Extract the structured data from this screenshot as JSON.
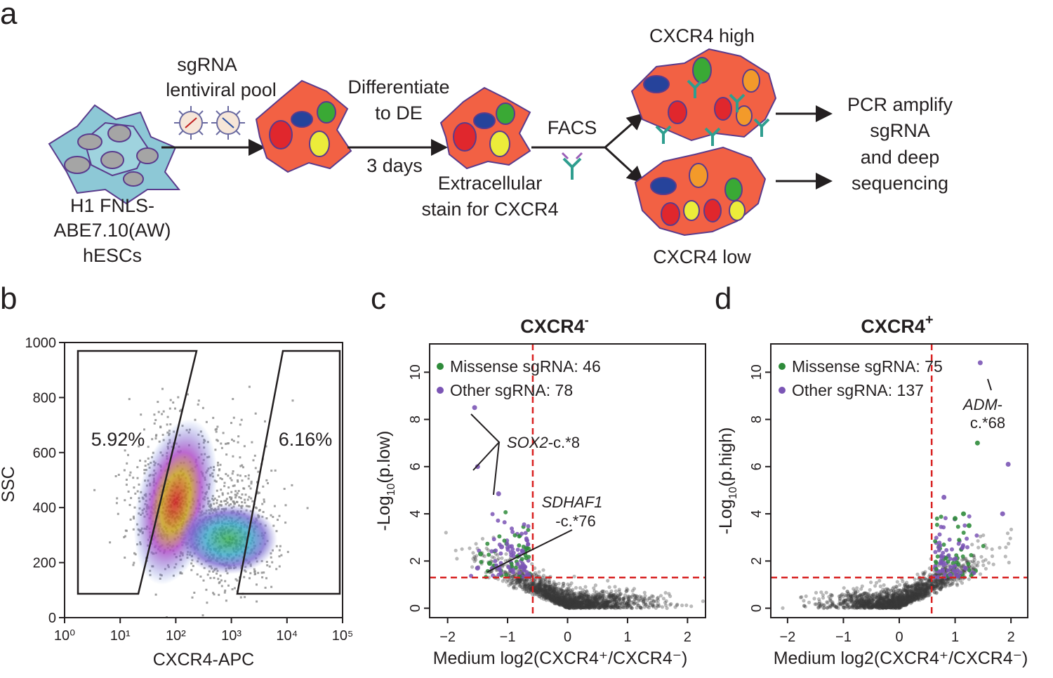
{
  "panel_labels": {
    "a": "a",
    "b": "b",
    "c": "c",
    "d": "d"
  },
  "panel_a": {
    "start_cells": [
      "H1 FNLS-",
      "ABE7.10(AW)",
      "hESCs"
    ],
    "lentiviral": [
      "sgRNA",
      "lentiviral pool"
    ],
    "differentiate": [
      "Differentiate",
      "to DE"
    ],
    "duration": "3 days",
    "stain": [
      "Extracellular",
      "stain for CXCR4"
    ],
    "facs": "FACS",
    "high": "CXCR4 high",
    "low": "CXCR4 low",
    "readout": [
      "PCR amplify",
      "sgRNA",
      "and deep",
      "sequencing"
    ],
    "colors": {
      "hesc": "#8dc8d6",
      "cell": "#f26144",
      "nucleus_red": "#e0272d",
      "nucleus_blue": "#26439b",
      "nucleus_green": "#3aa935",
      "nucleus_yellow": "#ecec3a",
      "nucleus_orange": "#f39a2a",
      "antibody": "#2f9e8f"
    }
  },
  "chart_data": [
    {
      "panel": "b",
      "type": "scatter",
      "subtype": "flow-cytometry density plot",
      "xlabel": "CXCR4-APC",
      "ylabel": "SSC",
      "x_scale": "log10",
      "xlim": [
        1,
        100000
      ],
      "xticks": [
        "10⁰",
        "10¹",
        "10²",
        "10³",
        "10⁴",
        "10⁵"
      ],
      "ylim": [
        0,
        1000
      ],
      "yticks": [
        "0",
        "200",
        "400",
        "600",
        "800",
        "1000"
      ],
      "gates": [
        {
          "label": "5.92%",
          "value": 5.92
        },
        {
          "label": "6.16%",
          "value": 6.16
        }
      ],
      "populations": [
        {
          "x_center": 80,
          "y_center": 380
        },
        {
          "x_center": 900,
          "y_center": 290
        }
      ]
    },
    {
      "panel": "c",
      "type": "scatter",
      "title": "CXCR4",
      "title_sup": "-",
      "xlabel": "Medium log2(CXCR4⁺/CXCR4⁻)",
      "ylabel_pre": "-Log",
      "ylabel_sub": "10",
      "ylabel_post": "(p.low)",
      "xlim": [
        -2.3,
        2.3
      ],
      "ylim": [
        -0.4,
        11.2
      ],
      "xticks": [
        "−2",
        "−1",
        "0",
        "1",
        "2"
      ],
      "yticks": [
        "0",
        "2",
        "4",
        "6",
        "8",
        "10"
      ],
      "threshold_x": -0.58,
      "threshold_y": 1.3,
      "legend": [
        {
          "label": "Missense sgRNA: 46",
          "color": "#2e8b3a"
        },
        {
          "label": "Other sgRNA: 78",
          "color": "#7b55b5"
        }
      ],
      "highlight_points": [
        {
          "x": -1.55,
          "y": 8.5,
          "group": "other"
        },
        {
          "x": -1.5,
          "y": 6.0,
          "group": "other"
        },
        {
          "x": -1.15,
          "y": 4.85,
          "group": "other"
        },
        {
          "x": -1.45,
          "y": 2.3,
          "group": "missense"
        },
        {
          "x": -1.1,
          "y": 2.6,
          "group": "other"
        },
        {
          "x": -0.75,
          "y": 2.4,
          "group": "other"
        },
        {
          "x": -1.5,
          "y": 1.7,
          "group": "other"
        },
        {
          "x": -1.3,
          "y": 1.9,
          "group": "missense"
        }
      ],
      "annotations": [
        {
          "gene": "SOX2",
          "suffix": "-c.*8"
        },
        {
          "gene": "SDHAF1",
          "suffix": "-c.*76"
        }
      ]
    },
    {
      "panel": "d",
      "type": "scatter",
      "title": "CXCR4",
      "title_sup": "+",
      "xlabel": "Medium log2(CXCR4⁺/CXCR4⁻)",
      "ylabel_pre": "-Log",
      "ylabel_sub": "10",
      "ylabel_post": "(p.high)",
      "xlim": [
        -2.3,
        2.3
      ],
      "ylim": [
        -0.4,
        11.2
      ],
      "xticks": [
        "−2",
        "−1",
        "0",
        "1",
        "2"
      ],
      "yticks": [
        "0",
        "2",
        "4",
        "6",
        "8",
        "10"
      ],
      "threshold_x": 0.58,
      "threshold_y": 1.3,
      "legend": [
        {
          "label": "Missense sgRNA: 75",
          "color": "#2e8b3a"
        },
        {
          "label": "Other sgRNA: 137",
          "color": "#7b55b5"
        }
      ],
      "highlight_points": [
        {
          "x": 1.45,
          "y": 10.4,
          "group": "other"
        },
        {
          "x": 1.4,
          "y": 7.0,
          "group": "missense"
        },
        {
          "x": 1.95,
          "y": 6.1,
          "group": "other"
        },
        {
          "x": 1.85,
          "y": 4.0,
          "group": "other"
        },
        {
          "x": 1.15,
          "y": 4.0,
          "group": "missense"
        },
        {
          "x": 1.25,
          "y": 3.5,
          "group": "missense"
        },
        {
          "x": 0.8,
          "y": 4.7,
          "group": "other"
        },
        {
          "x": 1.0,
          "y": 3.8,
          "group": "missense"
        }
      ],
      "annotations": [
        {
          "gene": "ADM",
          "suffix": "c.*68"
        }
      ]
    }
  ]
}
